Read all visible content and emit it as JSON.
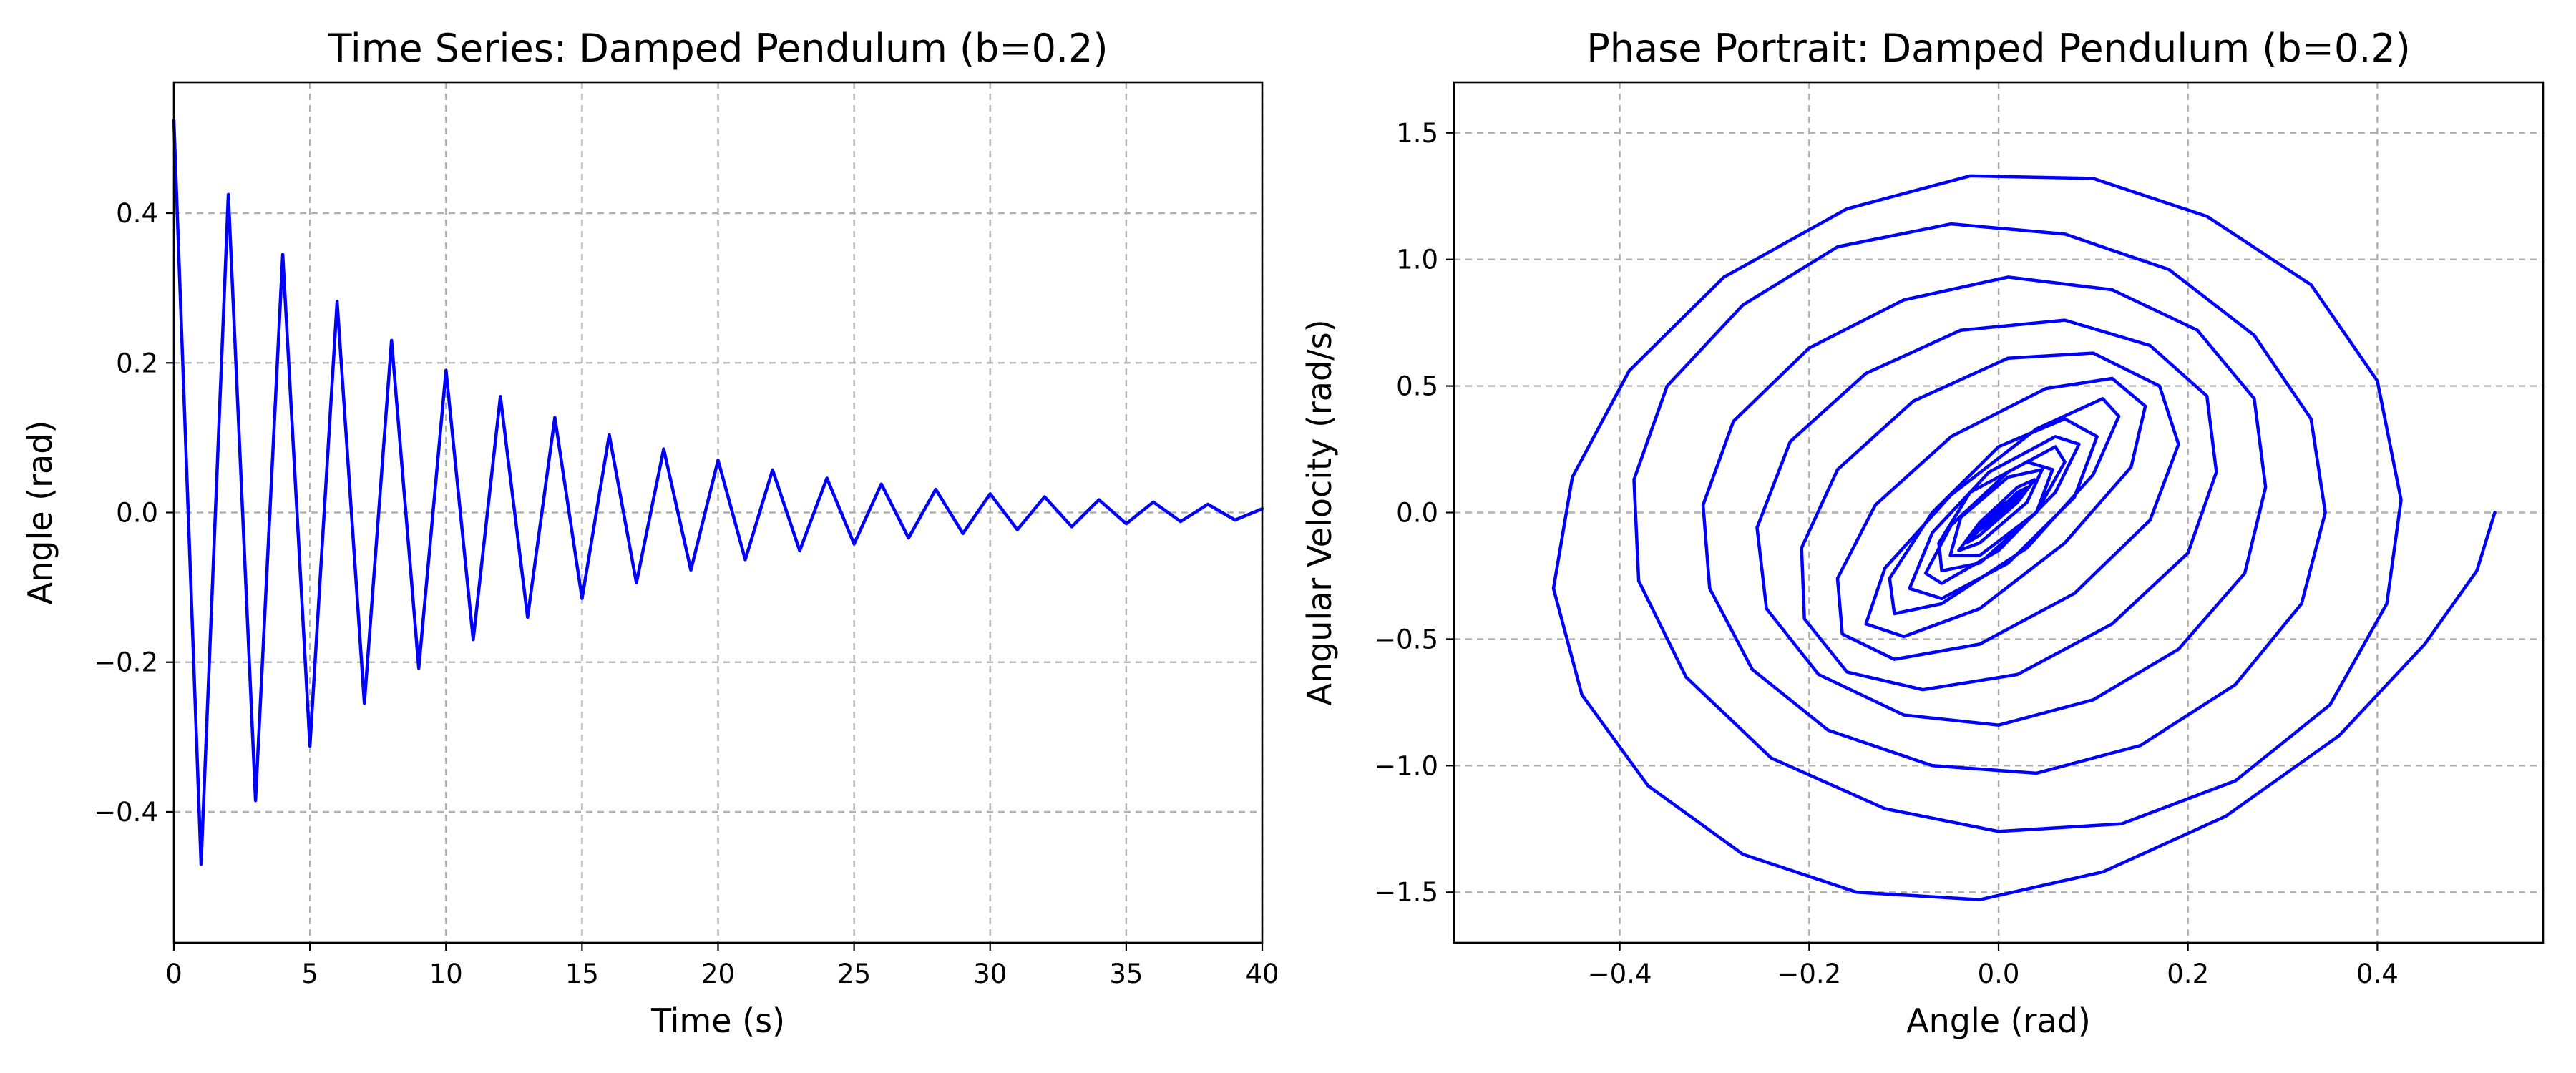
{
  "chart_data": [
    {
      "type": "line",
      "title": "Time Series: Damped Pendulum (b=0.2)",
      "xlabel": "Time (s)",
      "ylabel": "Angle (rad)",
      "xlim": [
        0,
        40
      ],
      "ylim": [
        -0.575,
        0.575
      ],
      "xticks": [
        0,
        5,
        10,
        15,
        20,
        25,
        30,
        35,
        40
      ],
      "xtick_labels": [
        "0",
        "5",
        "10",
        "15",
        "20",
        "25",
        "30",
        "35",
        "40"
      ],
      "yticks": [
        -0.4,
        -0.2,
        0.0,
        0.2,
        0.4
      ],
      "ytick_labels": [
        "−0.4",
        "−0.2",
        "0.0",
        "0.2",
        "0.4"
      ],
      "grid": true,
      "color": "#0000ff",
      "series": [
        {
          "x": [
            0,
            1.0,
            2.0,
            3.0,
            4.0,
            5.0,
            6.0,
            7.0,
            8.0,
            9.0,
            10.0,
            11.0,
            12.0,
            13.0,
            14.0,
            15.0,
            16.0,
            17.0,
            18.0,
            19.0,
            20.0,
            21.0,
            22.0,
            23.0,
            24.0,
            25.0,
            26.0,
            27.0,
            28.0,
            29.0,
            30.0,
            31.0,
            32.0,
            33.0,
            34.0,
            35.0,
            36.0,
            37.0,
            38.0,
            39.0,
            40.0
          ],
          "y": [
            0.524,
            -0.47,
            0.425,
            -0.385,
            0.345,
            -0.312,
            0.282,
            -0.255,
            0.23,
            -0.208,
            0.19,
            -0.17,
            0.155,
            -0.14,
            0.127,
            -0.115,
            0.104,
            -0.094,
            0.085,
            -0.077,
            0.07,
            -0.063,
            0.057,
            -0.051,
            0.046,
            -0.042,
            0.038,
            -0.034,
            0.031,
            -0.028,
            0.025,
            -0.023,
            0.021,
            -0.019,
            0.017,
            -0.015,
            0.014,
            -0.012,
            0.011,
            -0.01,
            0.005
          ]
        }
      ]
    },
    {
      "type": "line",
      "title": "Phase Portrait: Damped Pendulum (b=0.2)",
      "xlabel": "Angle (rad)",
      "ylabel": "Angular Velocity (rad/s)",
      "xlim": [
        -0.575,
        0.575
      ],
      "ylim": [
        -1.7,
        1.7
      ],
      "xticks": [
        -0.4,
        -0.2,
        0.0,
        0.2,
        0.4
      ],
      "xtick_labels": [
        "−0.4",
        "−0.2",
        "0.0",
        "0.2",
        "0.4"
      ],
      "yticks": [
        -1.5,
        -1.0,
        -0.5,
        0.0,
        0.5,
        1.0,
        1.5
      ],
      "ytick_labels": [
        "−1.5",
        "−1.0",
        "−0.5",
        "0.0",
        "0.5",
        "1.0",
        "1.5"
      ],
      "grid": true,
      "color": "#0000ff",
      "series": [
        {
          "x": [
            0.524,
            0.505,
            0.45,
            0.36,
            0.24,
            0.11,
            -0.02,
            -0.15,
            -0.27,
            -0.37,
            -0.44,
            -0.47,
            -0.45,
            -0.39,
            -0.29,
            -0.16,
            -0.03,
            0.1,
            0.22,
            0.33,
            0.4,
            0.425,
            0.41,
            0.35,
            0.25,
            0.13,
            0.0,
            -0.12,
            -0.24,
            -0.33,
            -0.38,
            -0.385,
            -0.35,
            -0.27,
            -0.17,
            -0.05,
            0.07,
            0.18,
            0.27,
            0.33,
            0.345,
            0.32,
            0.25,
            0.15,
            0.04,
            -0.07,
            -0.18,
            -0.26,
            -0.305,
            -0.312,
            -0.28,
            -0.2,
            -0.1,
            0.01,
            0.12,
            0.21,
            0.27,
            0.282,
            0.26,
            0.19,
            0.1,
            0.0,
            -0.1,
            -0.19,
            -0.245,
            -0.255,
            -0.22,
            -0.14,
            -0.04,
            0.07,
            0.16,
            0.22,
            0.23,
            0.2,
            0.12,
            0.02,
            -0.08,
            -0.16,
            -0.205,
            -0.208,
            -0.17,
            -0.09,
            0.01,
            0.1,
            0.17,
            0.19,
            0.16,
            0.08,
            -0.02,
            -0.11,
            -0.165,
            -0.17,
            -0.13,
            -0.05,
            0.05,
            0.12,
            0.155,
            0.14,
            0.07,
            -0.02,
            -0.1,
            -0.14,
            -0.12,
            -0.05,
            0.04,
            0.11,
            0.127,
            0.1,
            0.03,
            -0.06,
            -0.11,
            -0.115,
            -0.07,
            0.0,
            0.07,
            0.104,
            0.08,
            0.01,
            -0.06,
            -0.094,
            -0.07,
            -0.01,
            0.06,
            0.085,
            0.06,
            0.0,
            -0.06,
            -0.077,
            -0.05,
            0.01,
            0.06,
            0.07,
            0.04,
            -0.02,
            -0.06,
            -0.063,
            -0.03,
            0.03,
            0.057,
            0.04,
            -0.02,
            -0.051,
            -0.04,
            0.01,
            0.046,
            0.03,
            -0.02,
            -0.042,
            -0.02,
            0.02,
            0.038,
            0.02,
            -0.02,
            -0.034,
            -0.01,
            0.02,
            0.031,
            0.01,
            -0.02,
            -0.028,
            0.0,
            0.02,
            0.025,
            0.0,
            -0.02,
            -0.023,
            0.0,
            0.02,
            0.021,
            0.0,
            -0.015,
            -0.019,
            0.0,
            0.014,
            0.017,
            0.0,
            -0.012,
            -0.015,
            0.0,
            0.01,
            0.014,
            0.0,
            -0.01,
            -0.012,
            0.0,
            0.009,
            0.011,
            0.0,
            -0.008,
            -0.01,
            0.0,
            0.005
          ],
          "y": [
            0.0,
            -0.23,
            -0.52,
            -0.88,
            -1.2,
            -1.42,
            -1.53,
            -1.5,
            -1.35,
            -1.08,
            -0.72,
            -0.3,
            0.14,
            0.56,
            0.93,
            1.2,
            1.33,
            1.32,
            1.17,
            0.9,
            0.52,
            0.05,
            -0.36,
            -0.76,
            -1.06,
            -1.23,
            -1.26,
            -1.17,
            -0.97,
            -0.65,
            -0.27,
            0.13,
            0.5,
            0.82,
            1.05,
            1.14,
            1.1,
            0.96,
            0.7,
            0.37,
            0.0,
            -0.36,
            -0.68,
            -0.92,
            -1.03,
            -1.0,
            -0.86,
            -0.62,
            -0.3,
            0.03,
            0.36,
            0.65,
            0.84,
            0.93,
            0.88,
            0.72,
            0.45,
            0.1,
            -0.24,
            -0.54,
            -0.74,
            -0.84,
            -0.8,
            -0.64,
            -0.38,
            -0.06,
            0.28,
            0.55,
            0.72,
            0.76,
            0.66,
            0.46,
            0.16,
            -0.16,
            -0.44,
            -0.64,
            -0.7,
            -0.63,
            -0.42,
            -0.14,
            0.17,
            0.44,
            0.61,
            0.63,
            0.5,
            0.27,
            -0.03,
            -0.32,
            -0.52,
            -0.58,
            -0.48,
            -0.26,
            0.03,
            0.3,
            0.49,
            0.53,
            0.42,
            0.18,
            -0.12,
            -0.38,
            -0.49,
            -0.44,
            -0.22,
            0.07,
            0.33,
            0.45,
            0.38,
            0.15,
            -0.14,
            -0.36,
            -0.4,
            -0.26,
            0.0,
            0.26,
            0.37,
            0.3,
            0.06,
            -0.2,
            -0.34,
            -0.3,
            -0.08,
            0.16,
            0.3,
            0.27,
            0.08,
            -0.15,
            -0.28,
            -0.24,
            -0.05,
            0.16,
            0.26,
            0.2,
            0.0,
            -0.2,
            -0.23,
            -0.12,
            0.08,
            0.2,
            0.17,
            0.0,
            -0.17,
            -0.17,
            -0.02,
            0.14,
            0.17,
            0.04,
            -0.12,
            -0.15,
            -0.04,
            0.1,
            0.13,
            0.04,
            -0.09,
            -0.12,
            -0.03,
            0.08,
            0.1,
            0.02,
            -0.07,
            -0.09,
            -0.02,
            0.06,
            0.08,
            0.02,
            -0.05,
            -0.07,
            -0.02,
            0.05,
            0.06,
            0.01,
            -0.04,
            -0.05,
            -0.01,
            0.04,
            0.05,
            0.01,
            -0.03,
            -0.04,
            -0.01,
            0.03,
            0.04,
            0.0,
            -0.03,
            -0.03,
            0.0,
            0.02,
            0.03,
            0.0,
            -0.02,
            -0.02,
            0.0,
            0.0
          ]
        }
      ]
    }
  ]
}
